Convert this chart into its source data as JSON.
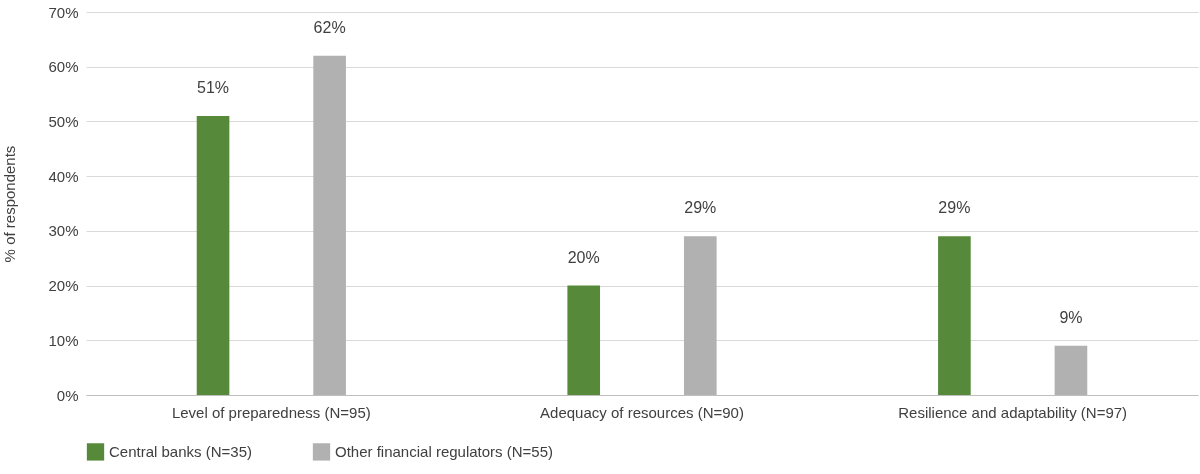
{
  "chart_data": {
    "type": "bar",
    "ylabel": "% of respondents",
    "categories": [
      "Level of preparedness (N=95)",
      "Adequacy of resources (N=90)",
      "Resilience and adaptability (N=97)"
    ],
    "series": [
      {
        "name": "Central banks (N=35)",
        "color": "#568a3a",
        "values": [
          51,
          20,
          29
        ],
        "value_labels": [
          "51%",
          "20%",
          "29%"
        ]
      },
      {
        "name": "Other financial regulators (N=55)",
        "color": "#b1b1b1",
        "values": [
          62,
          29,
          9
        ],
        "value_labels": [
          "62%",
          "29%",
          "9%"
        ]
      }
    ],
    "ylim": [
      0,
      70
    ],
    "yticks": [
      {
        "value": 0,
        "label": "0%"
      },
      {
        "value": 10,
        "label": "10%"
      },
      {
        "value": 20,
        "label": "20%"
      },
      {
        "value": 30,
        "label": "30%"
      },
      {
        "value": 40,
        "label": "40%"
      },
      {
        "value": 50,
        "label": "50%"
      },
      {
        "value": 60,
        "label": "60%"
      },
      {
        "value": 70,
        "label": "70%"
      }
    ],
    "grid": "y",
    "legend": "bottom"
  }
}
